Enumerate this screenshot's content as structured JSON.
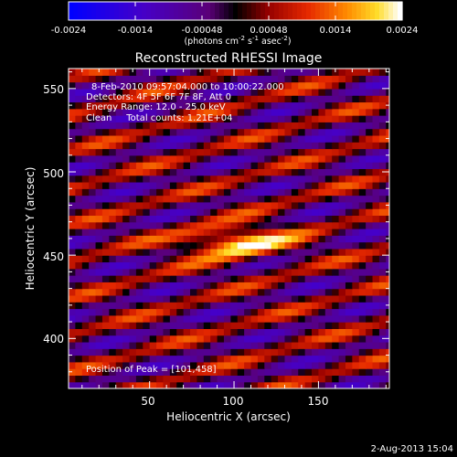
{
  "chart_data": {
    "type": "heatmap",
    "title": "Reconstructed RHESSI Image",
    "xlabel": "Heliocentric X (arcsec)",
    "ylabel": "Heliocentric Y (arcsec)",
    "xlim": [
      2,
      192
    ],
    "ylim": [
      370,
      562
    ],
    "x_ticks": [
      50,
      100,
      150
    ],
    "y_ticks": [
      400,
      450,
      500,
      550
    ],
    "colorbar": {
      "ticks": [
        "-0.0024",
        "-0.0014",
        "-0.00048",
        "0.00048",
        "0.0014",
        "0.0024"
      ],
      "min": -0.0024,
      "max": 0.0024,
      "unit_label": [
        "(photons cm",
        "-2",
        " s",
        "-1",
        " asec",
        "-2",
        ")"
      ]
    },
    "annotations": [
      "8-Feb-2010 09:57:04.000 to 10:00:22.000",
      "Detectors: 4F 5F 6F 7F 8F, Att 0",
      "Energy Range: 12.0 - 25.0 keV",
      "Clean     Total counts: 1.21E+04"
    ],
    "peak_label": "Position of Peak = [101,458]",
    "peak": {
      "x": 101,
      "y": 458,
      "value": 0.0024
    },
    "timestamp": "2-Aug-2013 15:04"
  }
}
